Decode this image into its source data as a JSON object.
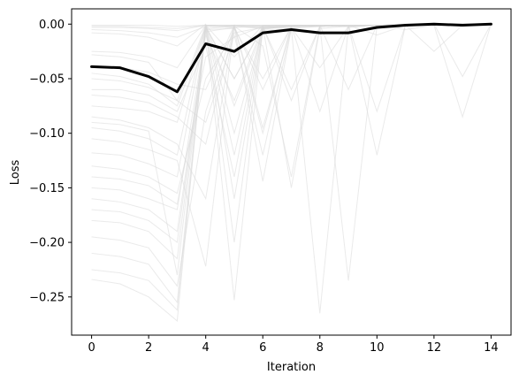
{
  "chart_data": {
    "type": "line",
    "title": "",
    "xlabel": "Iteration",
    "ylabel": "Loss",
    "xlim": [
      -0.7,
      14.7
    ],
    "ylim": [
      -0.285,
      0.014
    ],
    "xticks": [
      0,
      2,
      4,
      6,
      8,
      10,
      12,
      14
    ],
    "yticks": [
      0.0,
      -0.05,
      -0.1,
      -0.15,
      -0.2,
      -0.25
    ],
    "ytick_labels": [
      "0.00",
      "−0.05",
      "−0.10",
      "−0.15",
      "−0.20",
      "−0.25"
    ],
    "x": [
      0,
      1,
      2,
      3,
      4,
      5,
      6,
      7,
      8,
      9,
      10,
      11,
      12,
      13,
      14
    ],
    "grid": false,
    "legend": "none",
    "colors": {
      "mean": "#000000",
      "runs": "#d9d9d9"
    },
    "mean": [
      -0.039,
      -0.04,
      -0.048,
      -0.062,
      -0.018,
      -0.025,
      -0.008,
      -0.005,
      -0.008,
      -0.008,
      -0.003,
      -0.001,
      0.0,
      -0.001,
      0.0
    ],
    "runs": [
      [
        -0.001,
        -0.001,
        -0.001,
        -0.002,
        -0.001,
        -0.001,
        -0.001,
        -0.001,
        -0.001,
        -0.001,
        -0.001,
        -0.001,
        -0.001,
        -0.001,
        0.0
      ],
      [
        -0.003,
        -0.003,
        -0.004,
        -0.006,
        -0.001,
        -0.03,
        -0.001,
        -0.001,
        -0.001,
        -0.001,
        -0.001,
        -0.001,
        -0.001,
        -0.001,
        0.0
      ],
      [
        -0.005,
        -0.006,
        -0.008,
        -0.012,
        -0.002,
        -0.05,
        -0.002,
        -0.001,
        -0.001,
        -0.001,
        -0.001,
        -0.001,
        0.0,
        -0.001,
        0.0
      ],
      [
        -0.008,
        -0.009,
        -0.012,
        -0.02,
        0.0,
        -0.075,
        -0.005,
        -0.001,
        -0.001,
        -0.001,
        -0.001,
        0.0,
        0.0,
        0.0,
        0.0
      ],
      [
        -0.025,
        -0.026,
        -0.03,
        -0.04,
        -0.001,
        -0.12,
        -0.002,
        -0.002,
        -0.001,
        -0.002,
        -0.001,
        -0.001,
        0.0,
        0.0,
        0.0
      ],
      [
        -0.038,
        -0.04,
        -0.044,
        -0.055,
        -0.06,
        -0.001,
        -0.095,
        -0.002,
        -0.001,
        -0.002,
        -0.001,
        -0.001,
        -0.001,
        -0.001,
        0.0
      ],
      [
        -0.05,
        -0.052,
        -0.058,
        -0.07,
        -0.09,
        -0.01,
        -0.12,
        -0.003,
        -0.001,
        -0.001,
        -0.001,
        -0.001,
        -0.001,
        0.0,
        0.0
      ],
      [
        -0.065,
        -0.067,
        -0.072,
        -0.085,
        -0.11,
        -0.002,
        -0.02,
        -0.14,
        -0.002,
        -0.002,
        -0.001,
        -0.001,
        0.0,
        0.0,
        0.0
      ],
      [
        -0.075,
        -0.077,
        -0.08,
        -0.09,
        -0.002,
        -0.003,
        -0.144,
        -0.004,
        -0.002,
        -0.001,
        -0.001,
        -0.001,
        -0.001,
        -0.001,
        0.0
      ],
      [
        -0.085,
        -0.088,
        -0.095,
        -0.11,
        -0.16,
        -0.001,
        -0.002,
        -0.15,
        -0.004,
        -0.002,
        -0.001,
        -0.001,
        -0.001,
        0.0,
        0.0
      ],
      [
        -0.095,
        -0.098,
        -0.105,
        -0.12,
        -0.001,
        -0.16,
        -0.006,
        -0.004,
        -0.265,
        -0.003,
        -0.001,
        -0.001,
        0.0,
        -0.001,
        0.0
      ],
      [
        -0.105,
        -0.108,
        -0.115,
        -0.125,
        -0.222,
        -0.001,
        -0.004,
        -0.002,
        -0.002,
        -0.235,
        -0.002,
        -0.001,
        -0.001,
        -0.001,
        0.0
      ],
      [
        -0.118,
        -0.12,
        -0.128,
        -0.14,
        -0.003,
        -0.253,
        -0.004,
        -0.002,
        -0.002,
        -0.001,
        -0.12,
        -0.001,
        -0.001,
        -0.001,
        0.0
      ],
      [
        -0.13,
        -0.133,
        -0.14,
        -0.155,
        -0.05,
        -0.008,
        -0.003,
        -0.002,
        -0.08,
        -0.002,
        -0.001,
        -0.005,
        -0.001,
        -0.001,
        0.0
      ],
      [
        -0.14,
        -0.142,
        -0.148,
        -0.165,
        -0.03,
        -0.012,
        -0.002,
        -0.07,
        -0.002,
        -0.001,
        -0.001,
        -0.001,
        -0.025,
        -0.001,
        0.0
      ],
      [
        -0.16,
        -0.163,
        -0.17,
        -0.19,
        -0.01,
        -0.07,
        -0.002,
        -0.001,
        -0.001,
        -0.06,
        -0.001,
        -0.001,
        0.0,
        -0.048,
        0.0
      ],
      [
        -0.17,
        -0.172,
        -0.18,
        -0.2,
        -0.005,
        -0.004,
        -0.05,
        -0.002,
        -0.001,
        -0.001,
        -0.08,
        -0.001,
        -0.001,
        -0.001,
        0.0
      ],
      [
        -0.18,
        -0.182,
        -0.19,
        -0.215,
        -0.002,
        -0.001,
        -0.002,
        -0.001,
        -0.001,
        -0.001,
        -0.001,
        -0.001,
        -0.001,
        -0.085,
        0.0
      ],
      [
        -0.195,
        -0.198,
        -0.205,
        -0.24,
        -0.08,
        -0.002,
        -0.004,
        -0.003,
        -0.04,
        -0.002,
        -0.001,
        -0.001,
        0.0,
        0.0,
        0.0
      ],
      [
        -0.21,
        -0.213,
        -0.22,
        -0.255,
        -0.001,
        -0.1,
        -0.004,
        -0.002,
        -0.002,
        -0.001,
        -0.001,
        -0.001,
        -0.001,
        -0.001,
        0.0
      ],
      [
        -0.225,
        -0.228,
        -0.235,
        -0.262,
        -0.004,
        -0.002,
        -0.06,
        -0.002,
        -0.002,
        -0.001,
        -0.001,
        -0.001,
        -0.001,
        0.0,
        0.0
      ],
      [
        -0.234,
        -0.238,
        -0.25,
        -0.272,
        -0.001,
        -0.002,
        -0.003,
        -0.002,
        -0.001,
        -0.001,
        -0.001,
        -0.001,
        -0.001,
        -0.001,
        0.0
      ],
      [
        -0.06,
        -0.06,
        -0.065,
        -0.08,
        -0.02,
        -0.14,
        -0.003,
        -0.002,
        -0.001,
        -0.001,
        -0.001,
        -0.001,
        0.0,
        0.0,
        0.0
      ],
      [
        -0.028,
        -0.03,
        -0.035,
        -0.07,
        -0.001,
        -0.002,
        -0.1,
        -0.001,
        -0.001,
        -0.001,
        -0.001,
        -0.001,
        -0.001,
        -0.001,
        0.0
      ],
      [
        -0.002,
        -0.002,
        -0.003,
        -0.004,
        -0.001,
        -0.001,
        -0.001,
        -0.001,
        -0.001,
        -0.001,
        -0.01,
        -0.001,
        -0.001,
        -0.001,
        0.0
      ],
      [
        -0.045,
        -0.048,
        -0.055,
        -0.075,
        -0.003,
        -0.2,
        -0.003,
        -0.002,
        -0.002,
        -0.001,
        -0.001,
        -0.001,
        -0.001,
        -0.001,
        0.0
      ],
      [
        -0.15,
        -0.152,
        -0.16,
        -0.17,
        -0.007,
        -0.003,
        -0.002,
        -0.06,
        -0.002,
        -0.001,
        -0.001,
        -0.001,
        0.0,
        -0.001,
        0.0
      ],
      [
        -0.09,
        -0.092,
        -0.098,
        -0.23,
        -0.003,
        -0.05,
        -0.003,
        -0.002,
        -0.001,
        -0.002,
        -0.001,
        -0.001,
        -0.001,
        0.0,
        0.0
      ]
    ]
  }
}
